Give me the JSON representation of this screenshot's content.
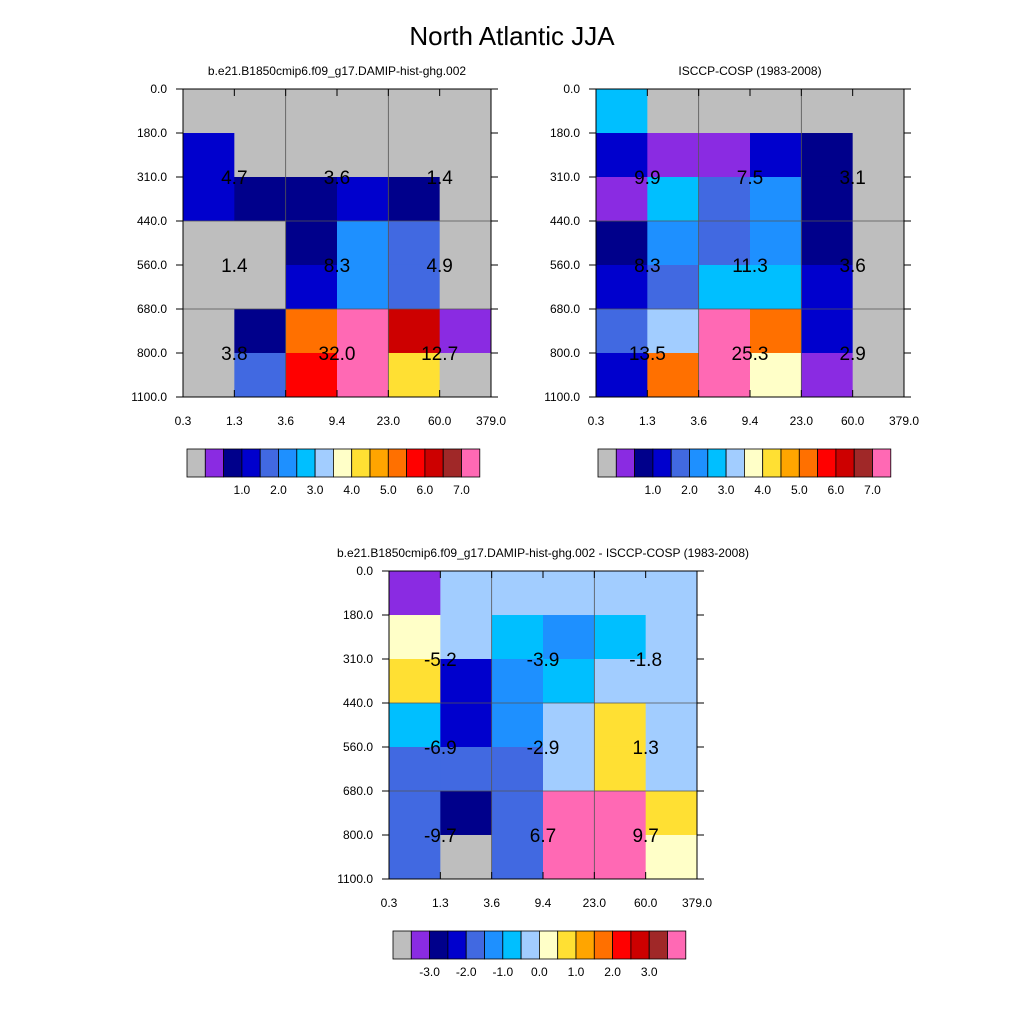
{
  "figure_title": "North Atlantic JJA",
  "chart_data": [
    {
      "type": "heatmap",
      "title": "b.e21.B1850cmip6.f09_g17.DAMIP-hist-ghg.002",
      "x_tick_labels": [
        "0.3",
        "1.3",
        "3.6",
        "9.4",
        "23.0",
        "60.0",
        "379.0"
      ],
      "y_tick_labels": [
        "0.0",
        "180.0",
        "310.0",
        "440.0",
        "560.0",
        "680.0",
        "800.0",
        "1100.0"
      ],
      "cell_colors": [
        [
          "#bebebe",
          "#bebebe",
          "#bebebe",
          "#bebebe",
          "#bebebe",
          "#bebebe"
        ],
        [
          "#0000cd",
          "#bebebe",
          "#bebebe",
          "#bebebe",
          "#bebebe",
          "#bebebe"
        ],
        [
          "#0000cd",
          "#00008b",
          "#00008b",
          "#0000cd",
          "#00008b",
          "#bebebe"
        ],
        [
          "#bebebe",
          "#bebebe",
          "#00008b",
          "#1e90ff",
          "#4169e1",
          "#bebebe"
        ],
        [
          "#bebebe",
          "#bebebe",
          "#0000cd",
          "#1e90ff",
          "#4169e1",
          "#bebebe"
        ],
        [
          "#bebebe",
          "#00008b",
          "#ff7000",
          "#ff69b4",
          "#cd0000",
          "#8a2be2"
        ],
        [
          "#bebebe",
          "#4169e1",
          "#ff0000",
          "#ff69b4",
          "#ffe033",
          "#bebebe"
        ]
      ],
      "box_labels": [
        {
          "row": 1,
          "col": 0,
          "text": "4.7"
        },
        {
          "row": 1,
          "col": 1,
          "text": "3.6"
        },
        {
          "row": 1,
          "col": 2,
          "text": "1.4"
        },
        {
          "row": 2,
          "col": 0,
          "text": "1.4"
        },
        {
          "row": 2,
          "col": 1,
          "text": "8.3"
        },
        {
          "row": 2,
          "col": 2,
          "text": "4.9"
        },
        {
          "row": 3,
          "col": 0,
          "text": "3.8"
        },
        {
          "row": 3,
          "col": 1,
          "text": "32.0"
        },
        {
          "row": 3,
          "col": 2,
          "text": "12.7"
        }
      ],
      "colorbar": {
        "colors": [
          "#bebebe",
          "#8a2be2",
          "#00008b",
          "#0000cd",
          "#4169e1",
          "#1e90ff",
          "#00bfff",
          "#a2cdff",
          "#ffffc8",
          "#ffe033",
          "#ffa500",
          "#ff7000",
          "#ff0000",
          "#cd0000",
          "#a02828",
          "#ff69b4"
        ],
        "labels": [
          "1.0",
          "2.0",
          "3.0",
          "4.0",
          "5.0",
          "6.0",
          "7.0"
        ],
        "label_boundary_index": 3
      }
    },
    {
      "type": "heatmap",
      "title": "ISCCP-COSP (1983-2008)",
      "x_tick_labels": [
        "0.3",
        "1.3",
        "3.6",
        "9.4",
        "23.0",
        "60.0",
        "379.0"
      ],
      "y_tick_labels": [
        "0.0",
        "180.0",
        "310.0",
        "440.0",
        "560.0",
        "680.0",
        "800.0",
        "1100.0"
      ],
      "cell_colors": [
        [
          "#00bfff",
          "#bebebe",
          "#bebebe",
          "#bebebe",
          "#bebebe",
          "#bebebe"
        ],
        [
          "#0000cd",
          "#8a2be2",
          "#8a2be2",
          "#0000cd",
          "#00008b",
          "#bebebe"
        ],
        [
          "#8a2be2",
          "#00bfff",
          "#4169e1",
          "#1e90ff",
          "#00008b",
          "#bebebe"
        ],
        [
          "#00008b",
          "#1e90ff",
          "#4169e1",
          "#1e90ff",
          "#00008b",
          "#bebebe"
        ],
        [
          "#0000cd",
          "#4169e1",
          "#00bfff",
          "#00bfff",
          "#0000cd",
          "#bebebe"
        ],
        [
          "#4169e1",
          "#a2cdff",
          "#ff69b4",
          "#ff7000",
          "#0000cd",
          "#bebebe"
        ],
        [
          "#0000cd",
          "#ff7000",
          "#ff69b4",
          "#ffffc8",
          "#8a2be2",
          "#bebebe"
        ]
      ],
      "box_labels": [
        {
          "row": 1,
          "col": 0,
          "text": "9.9"
        },
        {
          "row": 1,
          "col": 1,
          "text": "7.5"
        },
        {
          "row": 1,
          "col": 2,
          "text": "3.1"
        },
        {
          "row": 2,
          "col": 0,
          "text": "8.3"
        },
        {
          "row": 2,
          "col": 1,
          "text": "11.3"
        },
        {
          "row": 2,
          "col": 2,
          "text": "3.6"
        },
        {
          "row": 3,
          "col": 0,
          "text": "13.5"
        },
        {
          "row": 3,
          "col": 1,
          "text": "25.3"
        },
        {
          "row": 3,
          "col": 2,
          "text": "2.9"
        }
      ],
      "colorbar": {
        "colors": [
          "#bebebe",
          "#8a2be2",
          "#00008b",
          "#0000cd",
          "#4169e1",
          "#1e90ff",
          "#00bfff",
          "#a2cdff",
          "#ffffc8",
          "#ffe033",
          "#ffa500",
          "#ff7000",
          "#ff0000",
          "#cd0000",
          "#a02828",
          "#ff69b4"
        ],
        "labels": [
          "1.0",
          "2.0",
          "3.0",
          "4.0",
          "5.0",
          "6.0",
          "7.0"
        ],
        "label_boundary_index": 3
      }
    },
    {
      "type": "heatmap",
      "title": "b.e21.B1850cmip6.f09_g17.DAMIP-hist-ghg.002 - ISCCP-COSP (1983-2008)",
      "x_tick_labels": [
        "0.3",
        "1.3",
        "3.6",
        "9.4",
        "23.0",
        "60.0",
        "379.0"
      ],
      "y_tick_labels": [
        "0.0",
        "180.0",
        "310.0",
        "440.0",
        "560.0",
        "680.0",
        "800.0",
        "1100.0"
      ],
      "cell_colors": [
        [
          "#8a2be2",
          "#a2cdff",
          "#a2cdff",
          "#a2cdff",
          "#a2cdff",
          "#a2cdff"
        ],
        [
          "#ffffc8",
          "#a2cdff",
          "#00bfff",
          "#1e90ff",
          "#00bfff",
          "#a2cdff"
        ],
        [
          "#ffe033",
          "#0000cd",
          "#1e90ff",
          "#00bfff",
          "#a2cdff",
          "#a2cdff"
        ],
        [
          "#00bfff",
          "#0000cd",
          "#1e90ff",
          "#a2cdff",
          "#ffe033",
          "#a2cdff"
        ],
        [
          "#4169e1",
          "#4169e1",
          "#4169e1",
          "#a2cdff",
          "#ffe033",
          "#a2cdff"
        ],
        [
          "#4169e1",
          "#00008b",
          "#4169e1",
          "#ff69b4",
          "#ff69b4",
          "#ffe033"
        ],
        [
          "#4169e1",
          "#bebebe",
          "#4169e1",
          "#ff69b4",
          "#ff69b4",
          "#ffffc8"
        ]
      ],
      "box_labels": [
        {
          "row": 1,
          "col": 0,
          "text": "-5.2"
        },
        {
          "row": 1,
          "col": 1,
          "text": "-3.9"
        },
        {
          "row": 1,
          "col": 2,
          "text": "-1.8"
        },
        {
          "row": 2,
          "col": 0,
          "text": "-6.9"
        },
        {
          "row": 2,
          "col": 1,
          "text": "-2.9"
        },
        {
          "row": 2,
          "col": 2,
          "text": "1.3"
        },
        {
          "row": 3,
          "col": 0,
          "text": "-9.7"
        },
        {
          "row": 3,
          "col": 1,
          "text": "6.7"
        },
        {
          "row": 3,
          "col": 2,
          "text": "9.7"
        }
      ],
      "colorbar": {
        "colors": [
          "#bebebe",
          "#8a2be2",
          "#00008b",
          "#0000cd",
          "#4169e1",
          "#1e90ff",
          "#00bfff",
          "#a2cdff",
          "#ffffc8",
          "#ffe033",
          "#ffa500",
          "#ff7000",
          "#ff0000",
          "#cd0000",
          "#a02828",
          "#ff69b4"
        ],
        "labels": [
          "-3.0",
          "-2.0",
          "-1.0",
          "0.0",
          "1.0",
          "2.0",
          "3.0"
        ],
        "label_boundary_index": 2
      }
    }
  ]
}
